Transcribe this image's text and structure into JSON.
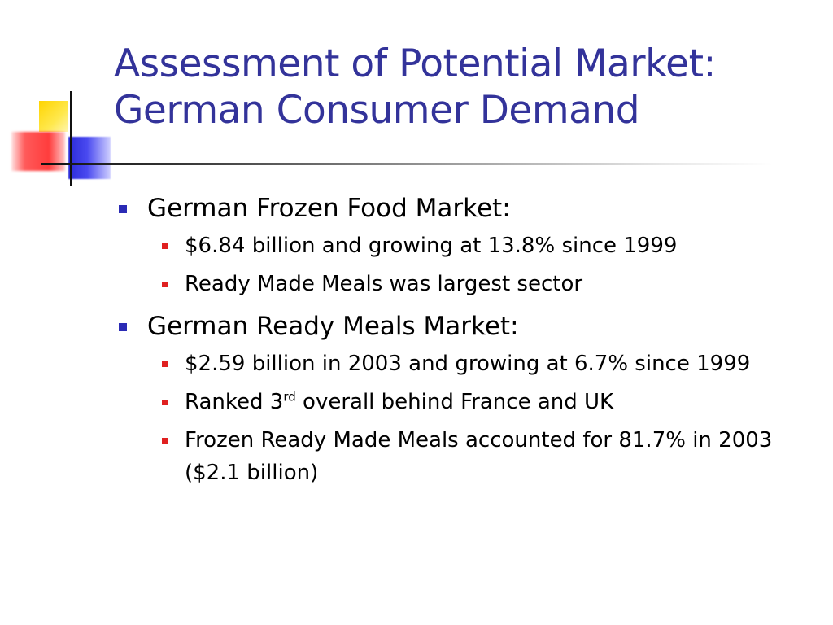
{
  "slide": {
    "title_line1": "Assessment of Potential Market:",
    "title_line2": "German Consumer Demand",
    "colors": {
      "title": "#33339a",
      "level1_bullet": "#2b2bb5",
      "level2_bullet": "#e02020",
      "accent_yellow": "#ffd400",
      "accent_red": "#ff3c3c",
      "accent_blue": "#2a2ad8"
    },
    "sections": [
      {
        "heading": "German Frozen Food Market:",
        "items": [
          {
            "text": "$6.84 billion and growing at 13.8% since 1999"
          },
          {
            "text": "Ready Made Meals was largest sector"
          }
        ]
      },
      {
        "heading": "German Ready Meals Market:",
        "items": [
          {
            "text": "$2.59 billion in 2003 and growing at 6.7% since 1999"
          },
          {
            "text_before": "Ranked 3",
            "superscript": "rd",
            "text_after": " overall behind France and UK"
          },
          {
            "text": "Frozen Ready Made Meals accounted for 81.7% in 2003 ($2.1 billion)"
          }
        ]
      }
    ]
  }
}
